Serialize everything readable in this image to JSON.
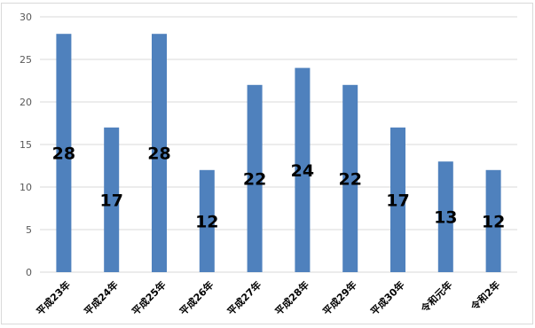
{
  "chart_data": {
    "type": "bar",
    "categories": [
      "平成23年",
      "平成24年",
      "平成25年",
      "平成26年",
      "平成27年",
      "平成28年",
      "平成29年",
      "平成30年",
      "令和元年",
      "令和2年"
    ],
    "values": [
      28,
      17,
      28,
      12,
      22,
      24,
      22,
      17,
      13,
      12
    ],
    "ylim": [
      0,
      30
    ],
    "yticks": [
      0,
      5,
      10,
      15,
      20,
      25,
      30
    ],
    "grid": true,
    "legend": "none",
    "data_labels": true,
    "colors": {
      "bar": "#4f81bd",
      "grid": "#d9d9d9"
    }
  }
}
